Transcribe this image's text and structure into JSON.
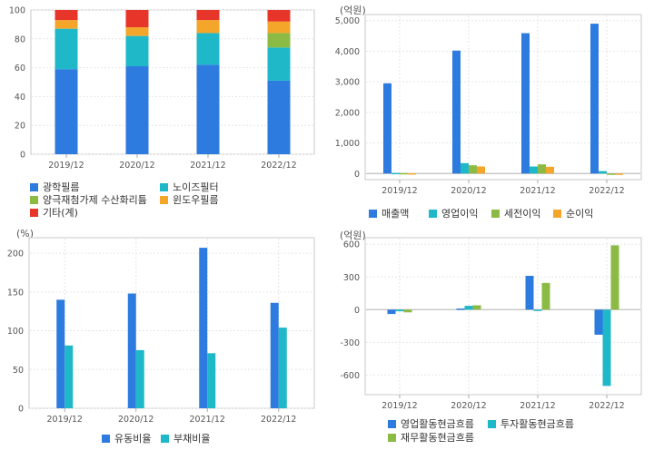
{
  "chart_data": [
    {
      "id": "composition",
      "type": "bar",
      "stacked": true,
      "categories": [
        "2019/12",
        "2020/12",
        "2021/12",
        "2022/12"
      ],
      "ylim": [
        0,
        100
      ],
      "yticks": [
        "0",
        "20",
        "40",
        "60",
        "80",
        "100"
      ],
      "grid": true,
      "legend_position": "bottom",
      "series": [
        {
          "name": "광학필름",
          "values": [
            59,
            61,
            62,
            51
          ],
          "color": "#2e7be0"
        },
        {
          "name": "노이즈필터",
          "values": [
            28,
            21,
            22,
            23
          ],
          "color": "#1fb8c9"
        },
        {
          "name": "양극재첨가제 수산화리튬",
          "values": [
            0,
            0,
            0,
            10
          ],
          "color": "#8bbb44"
        },
        {
          "name": "윈도우필름",
          "values": [
            6,
            6,
            9,
            8
          ],
          "color": "#f4a62a"
        },
        {
          "name": "기타(계)",
          "values": [
            7,
            12,
            7,
            8
          ],
          "color": "#e8352a"
        }
      ]
    },
    {
      "id": "income",
      "type": "bar",
      "unit": "(억원)",
      "categories": [
        "2019/12",
        "2020/12",
        "2021/12",
        "2022/12"
      ],
      "ylim": [
        -200,
        5200
      ],
      "yticks": [
        "0",
        "1,000",
        "2,000",
        "3,000",
        "4,000",
        "5,000"
      ],
      "grid": true,
      "legend_position": "bottom",
      "series": [
        {
          "name": "매출액",
          "values": [
            2950,
            4020,
            4590,
            4900
          ],
          "color": "#2e7be0"
        },
        {
          "name": "영업이익",
          "values": [
            20,
            340,
            230,
            80
          ],
          "color": "#1fb8c9"
        },
        {
          "name": "세전이익",
          "values": [
            15,
            270,
            300,
            -40
          ],
          "color": "#8bbb44"
        },
        {
          "name": "순이익",
          "values": [
            10,
            230,
            220,
            -40
          ],
          "color": "#f4a62a"
        }
      ]
    },
    {
      "id": "ratios",
      "type": "bar",
      "unit": "(%)",
      "categories": [
        "2019/12",
        "2020/12",
        "2021/12",
        "2022/12"
      ],
      "ylim": [
        0,
        220
      ],
      "yticks": [
        "0",
        "50",
        "100",
        "150",
        "200"
      ],
      "grid": true,
      "legend_position": "bottom",
      "series": [
        {
          "name": "유동비율",
          "values": [
            140,
            148,
            207,
            136
          ],
          "color": "#2e7be0"
        },
        {
          "name": "부채비율",
          "values": [
            81,
            75,
            71,
            104
          ],
          "color": "#1fb8c9"
        }
      ]
    },
    {
      "id": "cashflow",
      "type": "bar",
      "unit": "(억원)",
      "categories": [
        "2019/12",
        "2020/12",
        "2021/12",
        "2022/12"
      ],
      "ylim": [
        -780,
        660
      ],
      "yticks": [
        "600",
        "300",
        "0",
        "-300",
        "-600"
      ],
      "grid": true,
      "legend_position": "bottom",
      "series": [
        {
          "name": "영업활동현금흐름",
          "values": [
            -40,
            10,
            310,
            -230
          ],
          "color": "#2e7be0"
        },
        {
          "name": "투자활동현금흐름",
          "values": [
            -15,
            35,
            -10,
            -700
          ],
          "color": "#1fb8c9"
        },
        {
          "name": "재무활동현금흐름",
          "values": [
            -25,
            40,
            245,
            590
          ],
          "color": "#8bbb44"
        }
      ]
    }
  ]
}
